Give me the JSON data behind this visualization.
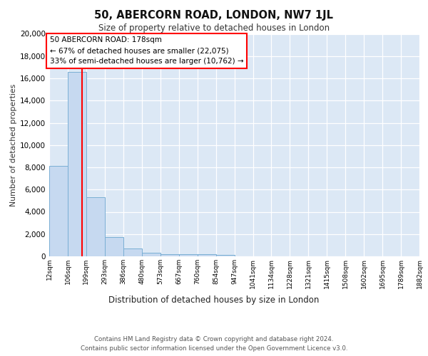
{
  "title": "50, ABERCORN ROAD, LONDON, NW7 1JL",
  "subtitle": "Size of property relative to detached houses in London",
  "xlabel": "Distribution of detached houses by size in London",
  "ylabel": "Number of detached properties",
  "bar_color": "#c6d9f0",
  "bar_edge_color": "#7aafd4",
  "background_color": "#dce8f5",
  "red_line_x": 178,
  "annotation_text": "50 ABERCORN ROAD: 178sqm\n← 67% of detached houses are smaller (22,075)\n33% of semi-detached houses are larger (10,762) →",
  "footer_line1": "Contains HM Land Registry data © Crown copyright and database right 2024.",
  "footer_line2": "Contains public sector information licensed under the Open Government Licence v3.0.",
  "bin_edges": [
    12,
    106,
    199,
    293,
    386,
    480,
    573,
    667,
    760,
    854,
    947,
    1041,
    1134,
    1228,
    1321,
    1415,
    1508,
    1602,
    1695,
    1789,
    1882
  ],
  "counts": [
    8100,
    16600,
    5300,
    1750,
    700,
    300,
    220,
    190,
    175,
    130,
    0,
    0,
    0,
    0,
    0,
    0,
    0,
    0,
    0,
    0
  ],
  "ylim": [
    0,
    20000
  ],
  "yticks": [
    0,
    2000,
    4000,
    6000,
    8000,
    10000,
    12000,
    14000,
    16000,
    18000,
    20000
  ]
}
